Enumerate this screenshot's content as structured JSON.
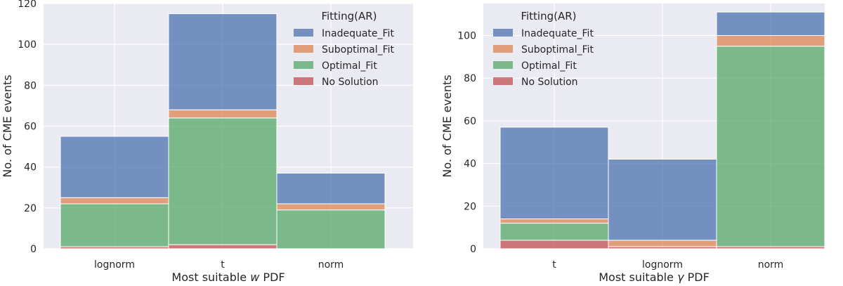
{
  "chart_data": [
    {
      "type": "bar",
      "stacked": true,
      "categories": [
        "lognorm",
        "t",
        "norm"
      ],
      "xlabel_prefix": "Most suitable ",
      "xlabel_symbol": "w",
      "xlabel_suffix": " PDF",
      "ylabel": "No. of CME events",
      "ylim": [
        0,
        120
      ],
      "yticks": [
        0,
        20,
        40,
        60,
        80,
        100,
        120
      ],
      "grid": true,
      "legend_placement": "top-right",
      "legend_title": "Fitting(AR)",
      "series": [
        {
          "name": "No Solution",
          "values": [
            1,
            2,
            0
          ],
          "color": "#c44e52"
        },
        {
          "name": "Optimal_Fit",
          "values": [
            21,
            62,
            19
          ],
          "color": "#55a868"
        },
        {
          "name": "Suboptimal_Fit",
          "values": [
            3,
            4,
            3
          ],
          "color": "#dd8452"
        },
        {
          "name": "Inadequate_Fit",
          "values": [
            30,
            47,
            15
          ],
          "color": "#4c72b0"
        }
      ]
    },
    {
      "type": "bar",
      "stacked": true,
      "categories": [
        "t",
        "lognorm",
        "norm"
      ],
      "xlabel_prefix": "Most suitable ",
      "xlabel_symbol": "γ",
      "xlabel_suffix": " PDF",
      "ylabel": "No. of CME events",
      "ylim": [
        0,
        115
      ],
      "yticks": [
        0,
        20,
        40,
        60,
        80,
        100
      ],
      "grid": true,
      "legend_placement": "top-left",
      "legend_title": "Fitting(AR)",
      "series": [
        {
          "name": "No Solution",
          "values": [
            4,
            1,
            1
          ],
          "color": "#c44e52"
        },
        {
          "name": "Optimal_Fit",
          "values": [
            8,
            0,
            94
          ],
          "color": "#55a868"
        },
        {
          "name": "Suboptimal_Fit",
          "values": [
            2,
            3,
            5
          ],
          "color": "#dd8452"
        },
        {
          "name": "Inadequate_Fit",
          "values": [
            43,
            38,
            11
          ],
          "color": "#4c72b0"
        }
      ]
    }
  ],
  "style": {
    "plot_background": "#eaeaf2",
    "grid_color": "#ffffff",
    "text_color": "#262626",
    "bar_opacity": 0.75
  }
}
